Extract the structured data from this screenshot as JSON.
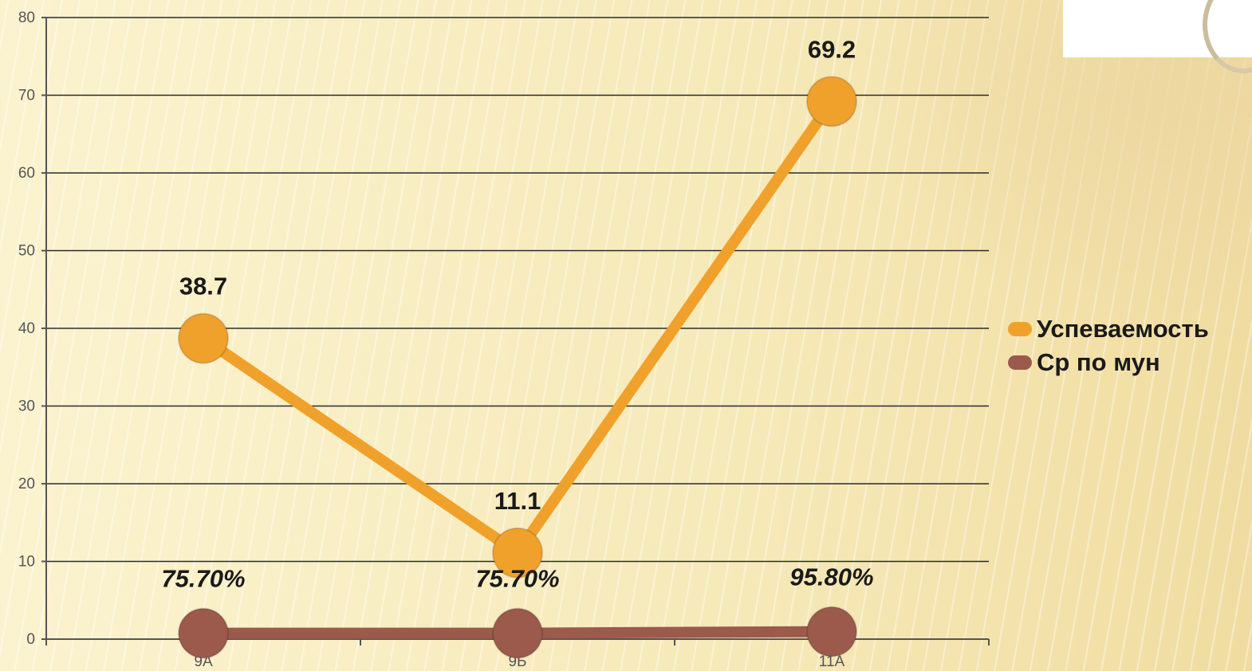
{
  "corner_image": {
    "icon": "seal-icon"
  },
  "chart_data": {
    "type": "line",
    "categories": [
      "9А",
      "9Б",
      "11А"
    ],
    "ylim": [
      0,
      80
    ],
    "yticks": [
      0,
      10,
      20,
      30,
      40,
      50,
      60,
      70,
      80
    ],
    "grid": true,
    "legend_position": "right",
    "series": [
      {
        "name": "Успеваемость",
        "values": [
          38.7,
          11.1,
          69.2
        ],
        "labels": [
          "38.7",
          "11.1",
          "69.2"
        ],
        "color": "#f0a12c"
      },
      {
        "name": "Ср по мун",
        "values": [
          0.757,
          0.757,
          0.958
        ],
        "labels": [
          "75.70%",
          "75.70%",
          "95.80%"
        ],
        "color": "#9b5a4c"
      }
    ]
  }
}
